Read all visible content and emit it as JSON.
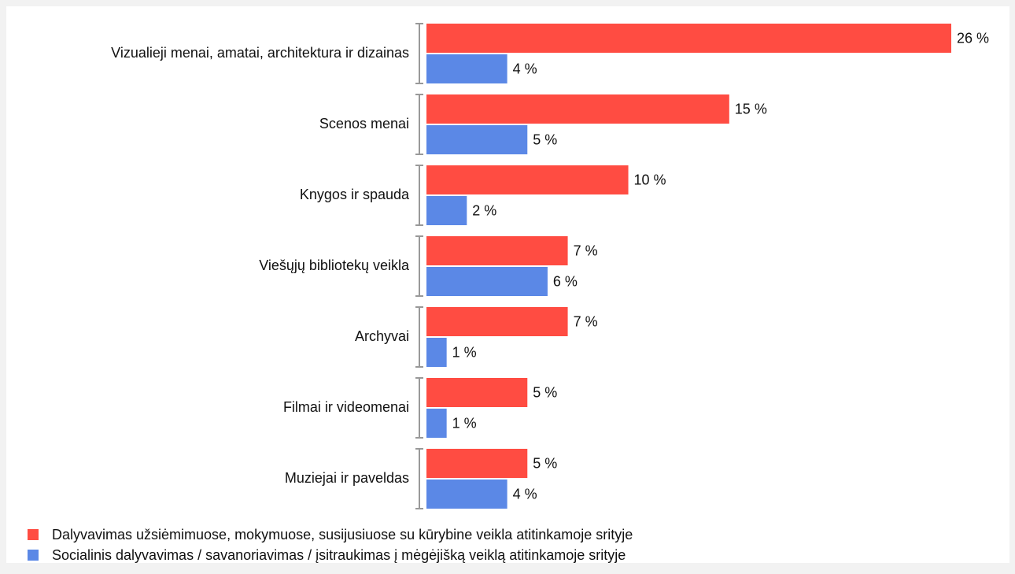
{
  "chart_data": {
    "type": "bar",
    "orientation": "horizontal",
    "categories": [
      "Vizualieji menai, amatai, architektura ir dizainas",
      "Scenos menai",
      "Knygos ir spauda",
      "Viešųjų bibliotekų veikla",
      "Archyvai",
      "Filmai ir videomenai",
      "Muziejai ir paveldas"
    ],
    "series": [
      {
        "name": "Dalyvavimas užsiėmimuose, mokymuose, susijusiuose su kūrybine veikla atitinkamoje srityje",
        "color": "#ff4c42",
        "values": [
          26,
          15,
          10,
          7,
          7,
          5,
          5
        ],
        "value_labels": [
          "26 %",
          "15 %",
          "10 %",
          "7 %",
          "7 %",
          "5 %",
          "5 %"
        ]
      },
      {
        "name": "Socialinis dalyvavimas / savanoriavimas / įsitraukimas į mėgėjišką veiklą atitinkamoje srityje",
        "color": "#5b88e6",
        "values": [
          4,
          5,
          2,
          6,
          1,
          1,
          4
        ],
        "value_labels": [
          "4 %",
          "5 %",
          "2 %",
          "6 %",
          "1 %",
          "1 %",
          "4 %"
        ]
      }
    ],
    "legend": "bottom-left"
  }
}
